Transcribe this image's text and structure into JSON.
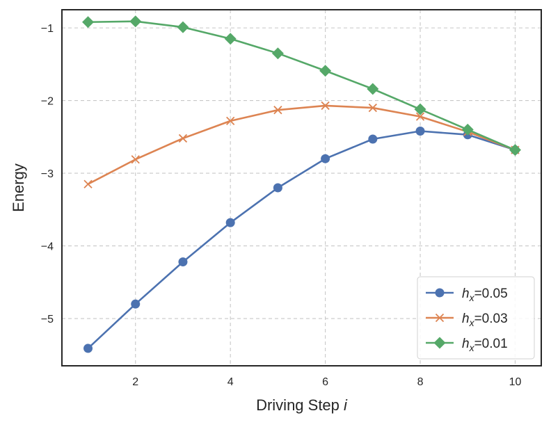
{
  "chart_data": {
    "type": "line",
    "xlabel": "Driving Step",
    "xlabel_var": "i",
    "ylabel": "Energy",
    "x": [
      1,
      2,
      3,
      4,
      5,
      6,
      7,
      8,
      9,
      10
    ],
    "xlim": [
      0.45,
      10.55
    ],
    "ylim": [
      -5.65,
      -0.75
    ],
    "xticks": [
      2,
      4,
      6,
      8,
      10
    ],
    "yticks": [
      -5,
      -4,
      -3,
      -2,
      -1
    ],
    "xtick_labels": [
      "2",
      "4",
      "6",
      "8",
      "10"
    ],
    "ytick_labels": [
      "−5",
      "−4",
      "−3",
      "−2",
      "−1"
    ],
    "grid": true,
    "legend_position": "lower-right",
    "series": [
      {
        "name": "h_x=0.05",
        "label_var": "h",
        "label_sub": "x",
        "label_value": "=0.05",
        "color": "#4c72b0",
        "marker": "circle",
        "values": [
          -5.41,
          -4.8,
          -4.22,
          -3.68,
          -3.2,
          -2.8,
          -2.53,
          -2.42,
          -2.47,
          -2.68
        ]
      },
      {
        "name": "h_x=0.03",
        "label_var": "h",
        "label_sub": "x",
        "label_value": "=0.03",
        "color": "#dd8452",
        "marker": "x",
        "values": [
          -3.15,
          -2.81,
          -2.52,
          -2.28,
          -2.13,
          -2.07,
          -2.1,
          -2.22,
          -2.43,
          -2.68
        ]
      },
      {
        "name": "h_x=0.01",
        "label_var": "h",
        "label_sub": "x",
        "label_value": "=0.01",
        "color": "#55a868",
        "marker": "diamond",
        "values": [
          -0.92,
          -0.91,
          -0.99,
          -1.15,
          -1.35,
          -1.59,
          -1.84,
          -2.12,
          -2.4,
          -2.68
        ]
      }
    ]
  }
}
